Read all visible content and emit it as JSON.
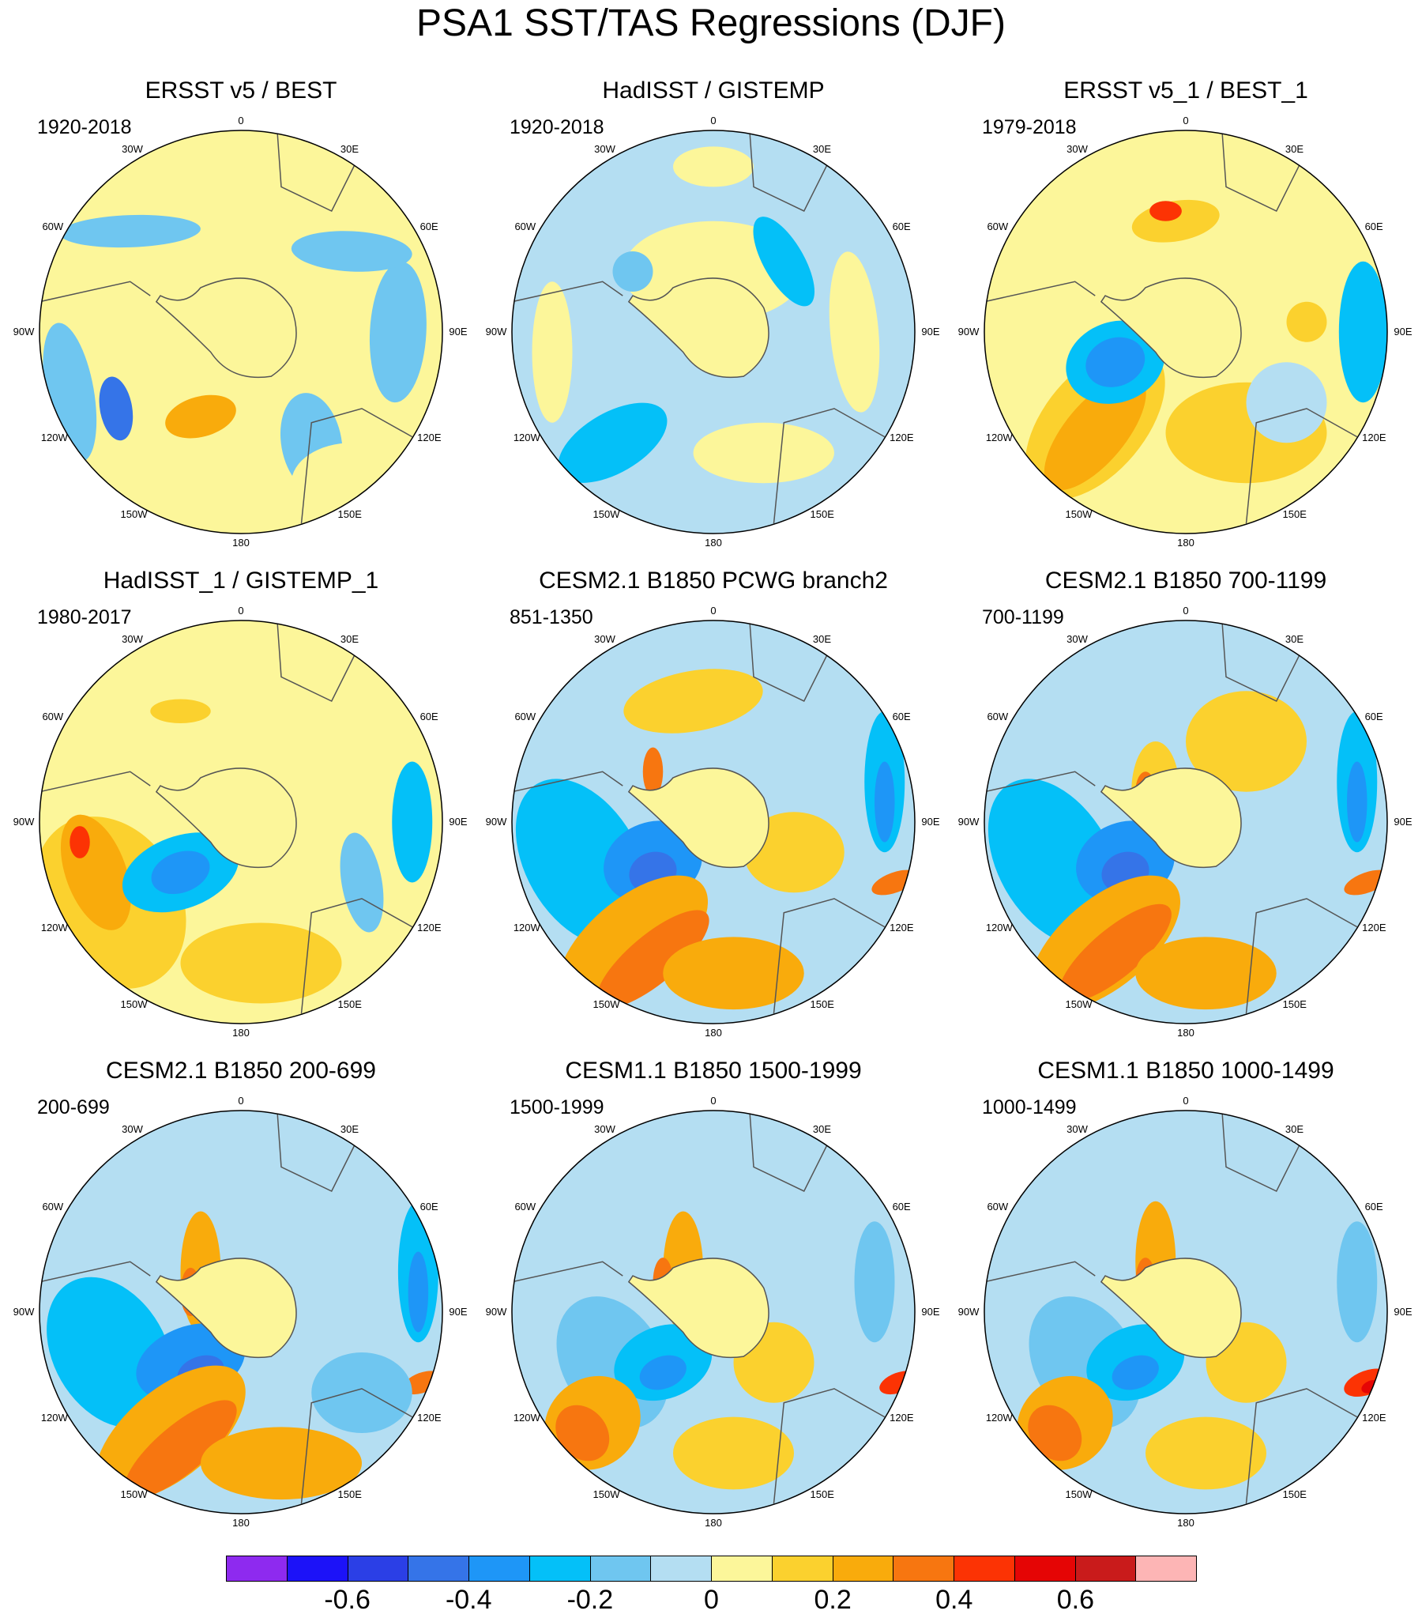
{
  "title": "PSA1 SST/TAS Regressions (DJF)",
  "lon_labels": [
    "0",
    "30E",
    "60E",
    "90E",
    "120E",
    "150E",
    "180",
    "150W",
    "120W",
    "90W",
    "60W",
    "30W"
  ],
  "panels": [
    {
      "title": "ERSST v5 / BEST",
      "period": "1920-2018"
    },
    {
      "title": "HadISST / GISTEMP",
      "period": "1920-2018"
    },
    {
      "title": "ERSST v5_1 / BEST_1",
      "period": "1979-2018"
    },
    {
      "title": "HadISST_1 / GISTEMP_1",
      "period": "1980-2017"
    },
    {
      "title": "CESM2.1 B1850 PCWG branch2",
      "period": "851-1350"
    },
    {
      "title": "CESM2.1 B1850 700-1199",
      "period": "700-1199"
    },
    {
      "title": "CESM2.1 B1850 200-699",
      "period": "200-699"
    },
    {
      "title": "CESM1.1 B1850 1500-1999",
      "period": "1500-1999"
    },
    {
      "title": "CESM1.1 B1850 1000-1499",
      "period": "1000-1499"
    }
  ],
  "colorbar": {
    "colors": [
      "#8e2aef",
      "#1c12f8",
      "#2b3fe6",
      "#3574e8",
      "#1e96f7",
      "#04c0f8",
      "#6fc6f0",
      "#b4def2",
      "#fcf69a",
      "#fbd12e",
      "#f9ab0c",
      "#f77610",
      "#fc3304",
      "#e50505",
      "#c91b1b",
      "#fdb5b5"
    ],
    "ticks": [
      "-0.6",
      "-0.4",
      "-0.2",
      "0",
      "0.2",
      "0.4",
      "0.6"
    ]
  }
}
